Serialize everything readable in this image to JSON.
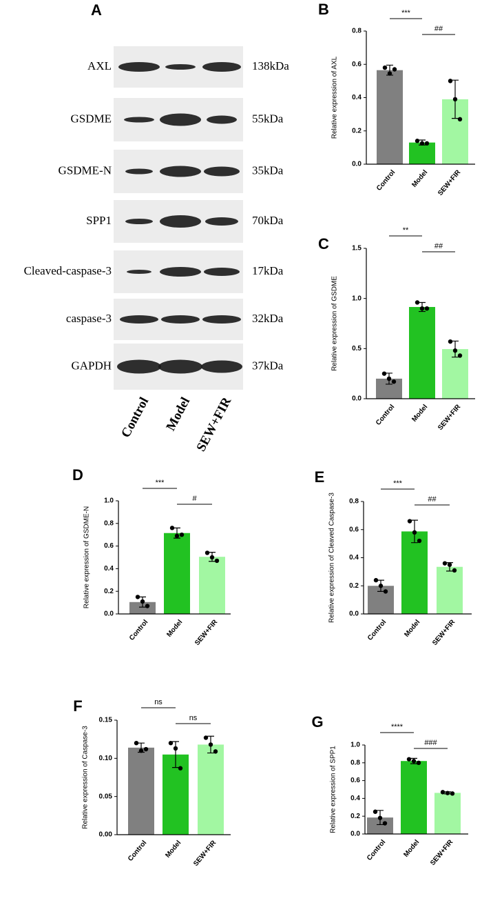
{
  "blot": {
    "label": "A",
    "rows": [
      {
        "name": "AXL",
        "size": "138kDa"
      },
      {
        "name": "GSDME",
        "size": "55kDa"
      },
      {
        "name": "GSDME-N",
        "size": "35kDa"
      },
      {
        "name": "SPP1",
        "size": "70kDa"
      },
      {
        "name": "Cleaved-caspase-3",
        "size": "17kDa"
      },
      {
        "name": "caspase-3",
        "size": "32kDa"
      },
      {
        "name": "GAPDH",
        "size": "37kDa"
      }
    ],
    "lanes": [
      "Control",
      "Model",
      "SEW+FIR"
    ]
  },
  "chart_data": [
    {
      "type": "bar",
      "label": "B",
      "ylabel": "Relative expression of AXL",
      "categories": [
        "Control",
        "Model",
        "SEW+FIR"
      ],
      "colors": [
        "#808080",
        "#22c222",
        "#a2f7a2"
      ],
      "values": [
        0.565,
        0.13,
        0.39
      ],
      "errors": [
        0.03,
        0.015,
        0.115
      ],
      "points": [
        [
          0.58,
          0.545,
          0.57
        ],
        [
          0.14,
          0.125,
          0.125
        ],
        [
          0.5,
          0.39,
          0.27
        ]
      ],
      "significance": [
        "***",
        "##"
      ],
      "ylim": [
        0,
        0.8
      ],
      "yticks": [
        {
          "value": 0,
          "label": "0.0"
        },
        0.2,
        0.4,
        0.6,
        0.8
      ]
    },
    {
      "type": "bar",
      "label": "C",
      "ylabel": "Relative expression of GSDME",
      "categories": [
        "Control",
        "Model",
        "SEW+FIR"
      ],
      "colors": [
        "#808080",
        "#22c222",
        "#a2f7a2"
      ],
      "values": [
        0.2,
        0.915,
        0.495
      ],
      "errors": [
        0.055,
        0.045,
        0.08
      ],
      "points": [
        [
          0.25,
          0.2,
          0.17
        ],
        [
          0.96,
          0.9,
          0.9
        ],
        [
          0.57,
          0.48,
          0.43
        ]
      ],
      "significance": [
        "**",
        "##"
      ],
      "ylim": [
        0,
        1.5
      ],
      "yticks": [
        {
          "value": 0,
          "label": "0.0"
        },
        0.5,
        {
          "value": 1,
          "label": "1.0"
        },
        1.5
      ]
    },
    {
      "type": "bar",
      "label": "D",
      "ylabel": "Relative expression of GSDME-N",
      "categories": [
        "Control",
        "Model",
        "SEW+FIR"
      ],
      "colors": [
        "#808080",
        "#22c222",
        "#a2f7a2"
      ],
      "values": [
        0.105,
        0.715,
        0.505
      ],
      "errors": [
        0.045,
        0.045,
        0.04
      ],
      "points": [
        [
          0.15,
          0.11,
          0.07
        ],
        [
          0.76,
          0.69,
          0.7
        ],
        [
          0.54,
          0.5,
          0.47
        ]
      ],
      "significance": [
        "***",
        "#"
      ],
      "ylim": [
        0,
        1
      ],
      "yticks": [
        {
          "value": 0,
          "label": "0.0"
        },
        0.2,
        0.4,
        0.6,
        0.8,
        {
          "value": 1,
          "label": "1.0"
        }
      ]
    },
    {
      "type": "bar",
      "label": "E",
      "ylabel": "Relative expression of Cleaved Caspase-3",
      "categories": [
        "Control",
        "Model",
        "SEW+FIR"
      ],
      "colors": [
        "#808080",
        "#22c222",
        "#a2f7a2"
      ],
      "values": [
        0.2,
        0.587,
        0.335
      ],
      "errors": [
        0.04,
        0.08,
        0.03
      ],
      "points": [
        [
          0.24,
          0.2,
          0.16
        ],
        [
          0.66,
          0.58,
          0.52
        ],
        [
          0.36,
          0.35,
          0.31
        ]
      ],
      "significance": [
        "***",
        "##"
      ],
      "ylim": [
        0,
        0.8
      ],
      "yticks": [
        {
          "value": 0,
          "label": "0.0"
        },
        0.2,
        0.4,
        0.6,
        0.8
      ]
    },
    {
      "type": "bar",
      "label": "F",
      "ylabel": "Relative expression of Caspase-3",
      "categories": [
        "Control",
        "Model",
        "SEW+FIR"
      ],
      "colors": [
        "#808080",
        "#22c222",
        "#a2f7a2"
      ],
      "values": [
        0.114,
        0.105,
        0.118
      ],
      "errors": [
        0.006,
        0.017,
        0.011
      ],
      "points": [
        [
          0.12,
          0.11,
          0.112
        ],
        [
          0.12,
          0.113,
          0.087
        ],
        [
          0.127,
          0.118,
          0.109
        ]
      ],
      "significance": [
        "ns",
        "ns"
      ],
      "ylim": [
        0,
        0.15
      ],
      "yticks": [
        {
          "value": 0,
          "label": "0.00"
        },
        0.05,
        {
          "value": 0.1,
          "label": "0.10"
        },
        0.15
      ]
    },
    {
      "type": "bar",
      "label": "G",
      "ylabel": "Relative expression of SPP1",
      "categories": [
        "Control",
        "Model",
        "SEW+FIR"
      ],
      "colors": [
        "#808080",
        "#22c222",
        "#a2f7a2"
      ],
      "values": [
        0.185,
        0.82,
        0.462
      ],
      "errors": [
        0.08,
        0.03,
        0.012
      ],
      "points": [
        [
          0.25,
          0.18,
          0.12
        ],
        [
          0.84,
          0.82,
          0.8
        ],
        [
          0.47,
          0.46,
          0.455
        ]
      ],
      "significance": [
        "****",
        "###"
      ],
      "ylim": [
        0,
        1
      ],
      "yticks": [
        {
          "value": 0,
          "label": "0.0"
        },
        0.2,
        0.4,
        0.6,
        0.8,
        {
          "value": 1,
          "label": "1.0"
        }
      ]
    }
  ]
}
